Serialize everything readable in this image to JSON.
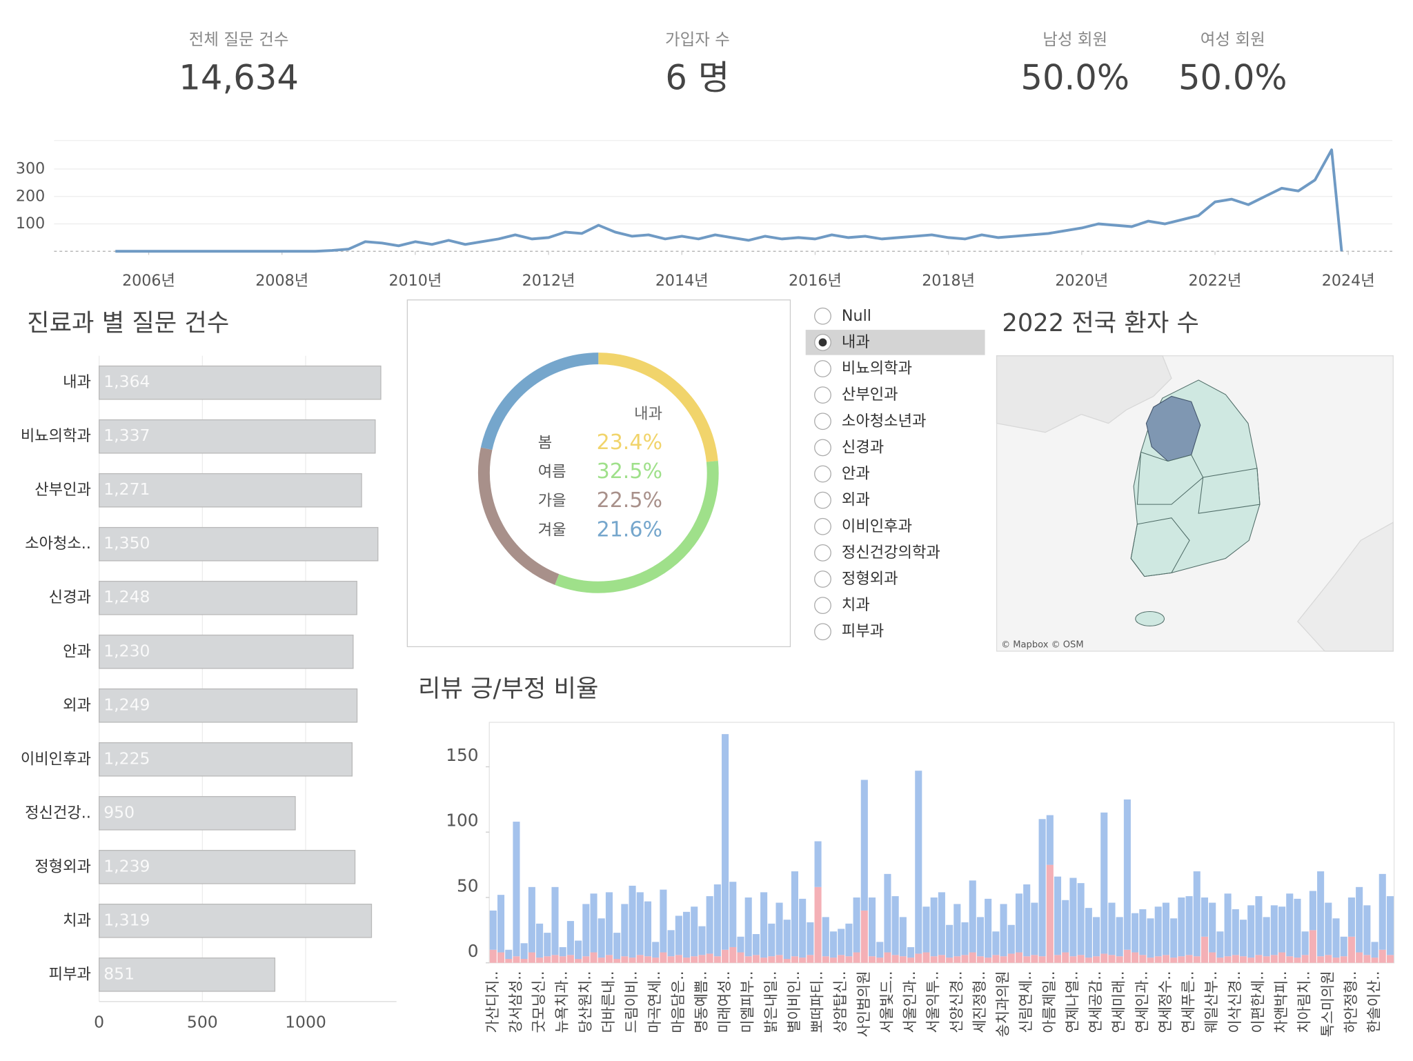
{
  "kpis": [
    {
      "label": "전체 질문 건수",
      "value": "14,634"
    },
    {
      "label": "가입자 수",
      "value": "6 명"
    },
    {
      "label": "남성 회원",
      "value": "50.0%"
    },
    {
      "label": "여성 회원",
      "value": "50.0%"
    }
  ],
  "chart_data": [
    {
      "type": "line",
      "x": [
        2005.5,
        2005.75,
        2006,
        2006.25,
        2006.5,
        2006.75,
        2007,
        2007.25,
        2007.5,
        2007.75,
        2008,
        2008.25,
        2008.5,
        2008.75,
        2009,
        2009.25,
        2009.5,
        2009.75,
        2010,
        2010.25,
        2010.5,
        2010.75,
        2011,
        2011.25,
        2011.5,
        2011.75,
        2012,
        2012.25,
        2012.5,
        2012.75,
        2013,
        2013.25,
        2013.5,
        2013.75,
        2014,
        2014.25,
        2014.5,
        2014.75,
        2015,
        2015.25,
        2015.5,
        2015.75,
        2016,
        2016.25,
        2016.5,
        2016.75,
        2017,
        2017.25,
        2017.5,
        2017.75,
        2018,
        2018.25,
        2018.5,
        2018.75,
        2019,
        2019.25,
        2019.5,
        2019.75,
        2020,
        2020.25,
        2020.5,
        2020.75,
        2021,
        2021.25,
        2021.5,
        2021.75,
        2022,
        2022.25,
        2022.5,
        2022.75,
        2023,
        2023.25,
        2023.5,
        2023.75,
        2023.9
      ],
      "series": [
        {
          "color": "#6f9ac4",
          "values": [
            0,
            0,
            0,
            0,
            0,
            0,
            0,
            0,
            0,
            0,
            0,
            0,
            0,
            3,
            8,
            35,
            30,
            20,
            35,
            25,
            40,
            25,
            35,
            45,
            60,
            45,
            50,
            70,
            65,
            95,
            70,
            55,
            60,
            45,
            55,
            45,
            60,
            50,
            40,
            55,
            45,
            50,
            45,
            60,
            50,
            55,
            45,
            50,
            55,
            60,
            50,
            45,
            60,
            50,
            55,
            60,
            65,
            75,
            85,
            100,
            95,
            90,
            110,
            100,
            115,
            130,
            180,
            190,
            170,
            200,
            230,
            220,
            260,
            370,
            0
          ]
        }
      ],
      "xlim": [
        2004.58,
        2024.66
      ],
      "xticks": [
        {
          "value": 2006,
          "label": "2006년"
        },
        {
          "value": 2008,
          "label": "2008년"
        },
        {
          "value": 2010,
          "label": "2010년"
        },
        {
          "value": 2012,
          "label": "2012년"
        },
        {
          "value": 2014,
          "label": "2014년"
        },
        {
          "value": 2016,
          "label": "2016년"
        },
        {
          "value": 2018,
          "label": "2018년"
        },
        {
          "value": 2020,
          "label": "2020년"
        },
        {
          "value": 2022,
          "label": "2022년"
        },
        {
          "value": 2024,
          "label": "2024년"
        }
      ],
      "ylim": [
        0,
        404
      ],
      "yticks": [
        100,
        200,
        300
      ],
      "grid": true
    },
    {
      "type": "bar",
      "orientation": "horizontal",
      "title": "진료과 별 질문 건수",
      "categories": [
        "내과",
        "비뇨의학과",
        "산부인과",
        "소아청소..",
        "신경과",
        "안과",
        "외과",
        "이비인후과",
        "정신건강..",
        "정형외과",
        "치과",
        "피부과"
      ],
      "values": [
        1364,
        1337,
        1271,
        1350,
        1248,
        1230,
        1249,
        1225,
        950,
        1239,
        1319,
        851
      ],
      "value_labels": [
        "1,364",
        "1,337",
        "1,271",
        "1,350",
        "1,248",
        "1,230",
        "1,249",
        "1,225",
        "950",
        "1,239",
        "1,319",
        "851"
      ],
      "color": "#d5d7d9",
      "xlim": [
        0,
        1440
      ],
      "xticks": [
        0,
        500,
        1000
      ],
      "grid": true
    },
    {
      "type": "pie",
      "center_label": "내과",
      "categories": [
        "봄",
        "여름",
        "가을",
        "겨울"
      ],
      "values": [
        23.4,
        32.5,
        22.5,
        21.6
      ],
      "value_labels": [
        "23.4%",
        "32.5%",
        "22.5%",
        "21.6%"
      ],
      "colors": [
        "#f1d46b",
        "#9fe08a",
        "#a8908a",
        "#75a6cc"
      ]
    },
    {
      "type": "bar",
      "stacked": true,
      "title": "리뷰 긍/부정 비율",
      "categories": [
        "가산디지..",
        null,
        null,
        "강서삼성..",
        null,
        null,
        "굿모닝신..",
        null,
        null,
        "뉴욕치과..",
        null,
        null,
        "당산원치..",
        null,
        null,
        "더바른내..",
        null,
        null,
        "드림이비..",
        null,
        null,
        "마곡연세..",
        null,
        null,
        "마음담은..",
        null,
        null,
        "명동예쁨..",
        null,
        null,
        "미래여성..",
        null,
        null,
        "미엘피부..",
        null,
        null,
        "밝은내일..",
        null,
        null,
        "별이비인..",
        null,
        null,
        "뽀떠파티..",
        null,
        null,
        "상암탑신..",
        null,
        null,
        "사인범의원",
        null,
        null,
        "서울빛드..",
        null,
        null,
        "서울인과..",
        null,
        null,
        "서울익투..",
        null,
        null,
        "선양신경..",
        null,
        null,
        "세진정형..",
        null,
        null,
        "송치과의원",
        null,
        null,
        "신림연세..",
        null,
        null,
        "아름제일..",
        null,
        null,
        "연제나열..",
        null,
        null,
        "연세공감..",
        null,
        null,
        "연세미래..",
        null,
        null,
        "연세인과..",
        null,
        null,
        "연세정수..",
        null,
        null,
        "연세푸른..",
        null,
        null,
        "웨일산부..",
        null,
        null,
        "이삭신경..",
        null,
        null,
        "이편한세..",
        null,
        null,
        "차앤박피..",
        null,
        null,
        "치아림치..",
        null,
        null,
        "톡스미의원",
        null,
        null,
        "하안정형..",
        null,
        null,
        "한솔이산..",
        null,
        null
      ],
      "series": [
        {
          "color": "#f4b0b6",
          "values": [
            10,
            8,
            3,
            5,
            3,
            8,
            4,
            5,
            6,
            5,
            6,
            3,
            5,
            8,
            4,
            6,
            3,
            5,
            4,
            6,
            5,
            4,
            8,
            5,
            6,
            4,
            5,
            6,
            7,
            5,
            10,
            12,
            8,
            5,
            6,
            4,
            5,
            6,
            3,
            5,
            4,
            6,
            58,
            5,
            4,
            6,
            5,
            8,
            40,
            5,
            4,
            8,
            6,
            5,
            4,
            7,
            8,
            5,
            6,
            4,
            5,
            6,
            8,
            5,
            4,
            6,
            5,
            7,
            8,
            5,
            6,
            5,
            75,
            6,
            8,
            5,
            6,
            4,
            5,
            7,
            6,
            5,
            10,
            8,
            6,
            4,
            5,
            6,
            4,
            5,
            6,
            5,
            20,
            8,
            4,
            5,
            6,
            5,
            4,
            6,
            5,
            6,
            8,
            5,
            4,
            6,
            25,
            5,
            6,
            4,
            5,
            20,
            8,
            6,
            4,
            10,
            6
          ]
        },
        {
          "color": "#a4c2ec",
          "values": [
            30,
            44,
            7,
            103,
            12,
            50,
            26,
            18,
            52,
            7,
            26,
            14,
            40,
            45,
            30,
            48,
            20,
            40,
            55,
            48,
            42,
            12,
            48,
            20,
            30,
            35,
            38,
            22,
            44,
            55,
            165,
            50,
            12,
            45,
            16,
            50,
            25,
            40,
            30,
            65,
            45,
            25,
            35,
            30,
            20,
            20,
            25,
            42,
            100,
            45,
            12,
            60,
            45,
            30,
            8,
            140,
            35,
            45,
            48,
            25,
            40,
            25,
            55,
            30,
            45,
            18,
            40,
            22,
            45,
            55,
            40,
            105,
            38,
            60,
            40,
            60,
            55,
            38,
            30,
            108,
            40,
            30,
            115,
            30,
            35,
            30,
            38,
            40,
            30,
            45,
            45,
            65,
            30,
            38,
            20,
            48,
            35,
            28,
            40,
            45,
            30,
            38,
            35,
            48,
            45,
            18,
            30,
            65,
            40,
            30,
            15,
            30,
            50,
            38,
            12,
            58,
            45
          ]
        }
      ],
      "ylim": [
        0,
        184
      ],
      "yticks": [
        0,
        50,
        100,
        150
      ]
    }
  ],
  "filter": {
    "options": [
      "Null",
      "내과",
      "비뇨의학과",
      "산부인과",
      "소아청소년과",
      "신경과",
      "안과",
      "외과",
      "이비인후과",
      "정신건강의학과",
      "정형외과",
      "치과",
      "피부과"
    ],
    "selected": 1
  },
  "map": {
    "title": "2022 전국 환자 수",
    "attribution": "© Mapbox © OSM"
  }
}
